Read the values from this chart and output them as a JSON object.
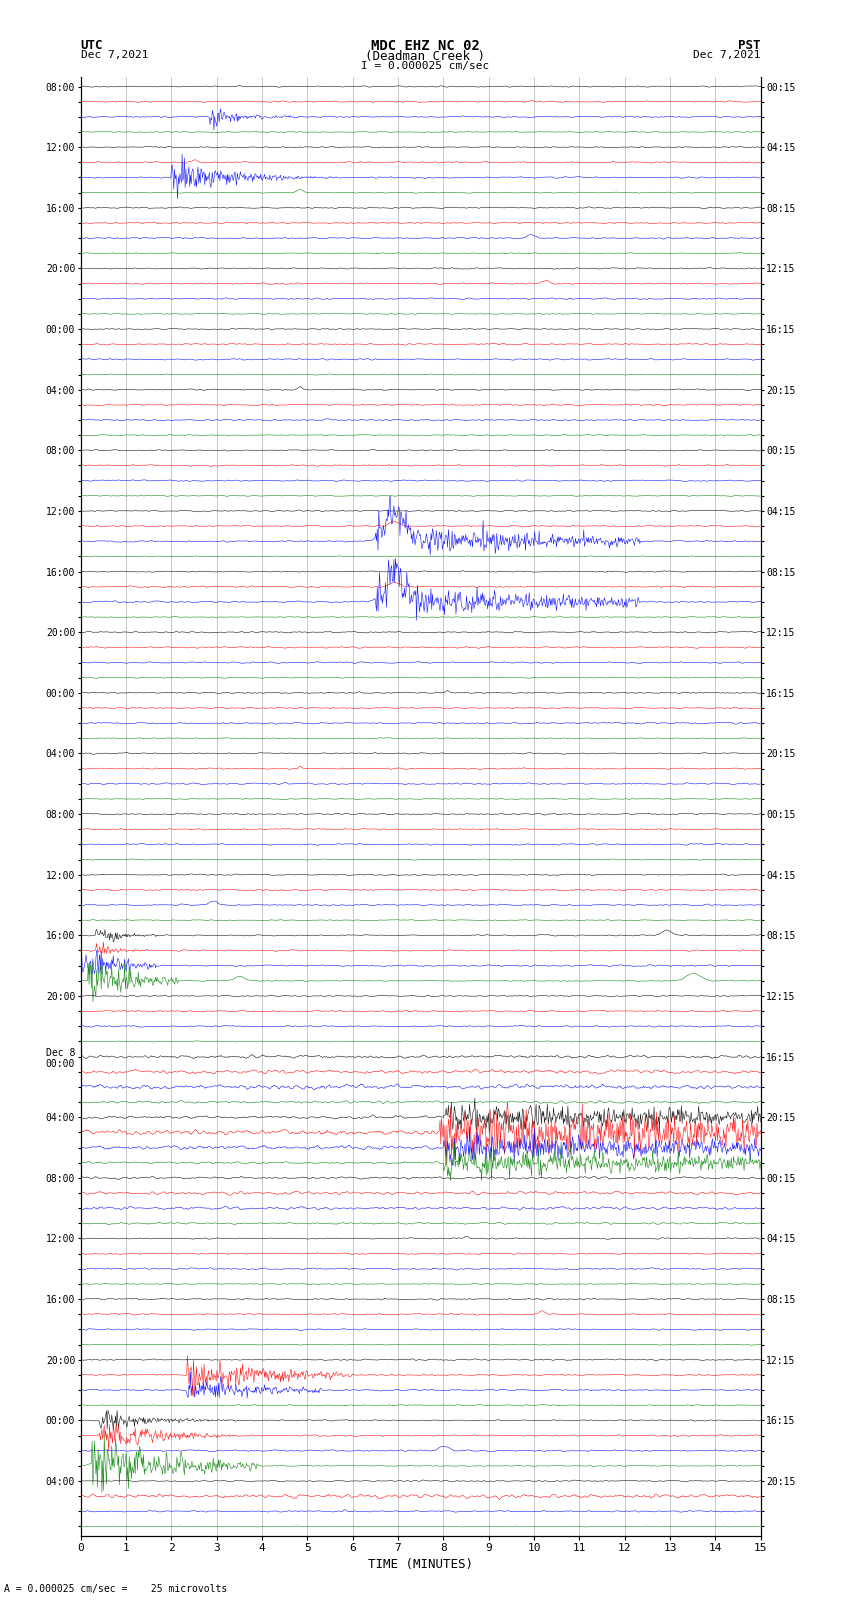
{
  "title_line1": "MDC EHZ NC 02",
  "title_line2": "(Deadman Creek )",
  "title_scale": "I = 0.000025 cm/sec",
  "left_label_top": "UTC",
  "left_label_date": "Dec 7,2021",
  "right_label_top": "PST",
  "right_label_date": "Dec 7,2021",
  "xlabel": "TIME (MINUTES)",
  "bottom_note": "= 0.000025 cm/sec =    25 microvolts",
  "n_rows": 96,
  "n_minutes": 15,
  "colors_cycle": [
    "black",
    "red",
    "blue",
    "green"
  ],
  "bg_color": "#ffffff",
  "figsize": [
    8.5,
    16.13
  ],
  "dpi": 100,
  "seed": 42
}
